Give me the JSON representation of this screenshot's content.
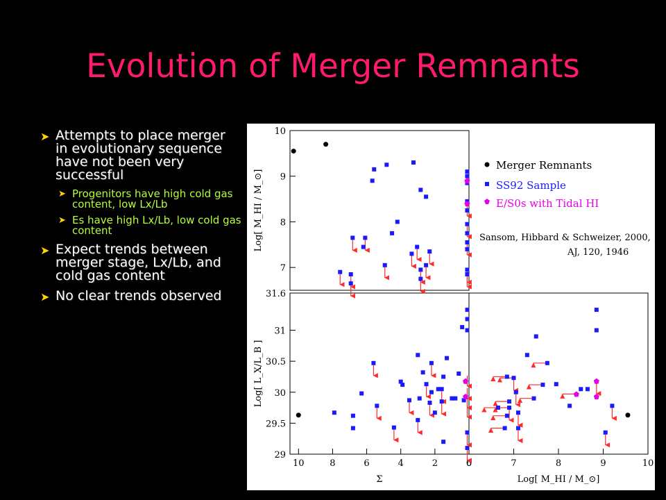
{
  "title": "Evolution of Merger Remnants",
  "bullets": [
    {
      "text": "Attempts to place merger in evolutionary sequence have not been very successful",
      "sub": [
        "Progenitors have high cold gas content, low Lx/Lb",
        "Es have high Lx/Lb, low cold gas content"
      ]
    },
    {
      "text": "Expect trends between merger stage, Lx/Lb, and cold gas content",
      "sub": []
    },
    {
      "text": "No clear trends observed",
      "sub": []
    }
  ],
  "colors": {
    "title": "#ff1a6e",
    "bullet_arrow": "#ffd400",
    "subbullet_text": "#b4ff3c",
    "merger": "#000000",
    "ss92": "#1a1aff",
    "es0": "#e600e6",
    "limit_arrow": "#ff2a2a"
  },
  "legend": {
    "merger": "Merger Remnants",
    "ss92": "SS92 Sample",
    "es0": "E/S0s with Tidal HI"
  },
  "reference": {
    "line1": "Sansom, Hibbard & Schweizer, 2000,",
    "line2": "AJ, 120, 1946"
  },
  "chart_data": [
    {
      "type": "scatter",
      "panel": "top-left",
      "xlabel": "",
      "ylabel": "Log[ M_HI / M_⊙]",
      "xlim": [
        10,
        0
      ],
      "ylim": [
        6.5,
        10
      ],
      "y_ticks": [
        "10",
        "9",
        "8",
        "7"
      ],
      "series": [
        {
          "name": "Merger Remnants",
          "points": [
            [
              9.8,
              9.55
            ],
            [
              8.0,
              9.7
            ]
          ]
        },
        {
          "name": "SS92 Sample",
          "points": [
            [
              4.6,
              9.25
            ],
            [
              5.3,
              9.15
            ],
            [
              5.4,
              8.9
            ],
            [
              3.1,
              9.3
            ],
            [
              2.7,
              8.7
            ],
            [
              2.4,
              8.55
            ],
            [
              4.0,
              8.0
            ],
            [
              4.3,
              7.75
            ],
            [
              6.5,
              7.65
            ],
            [
              5.8,
              7.65
            ],
            [
              5.9,
              7.45
            ],
            [
              2.9,
              7.45
            ],
            [
              3.2,
              7.3
            ],
            [
              2.2,
              7.35
            ],
            [
              2.4,
              7.05
            ],
            [
              4.7,
              7.05
            ],
            [
              2.7,
              6.95
            ],
            [
              2.7,
              6.75
            ],
            [
              7.2,
              6.9
            ],
            [
              6.6,
              6.85
            ],
            [
              6.6,
              6.65
            ],
            [
              0.1,
              9.1
            ],
            [
              0.1,
              9.0
            ],
            [
              0.1,
              8.85
            ],
            [
              0.1,
              8.45
            ],
            [
              0.1,
              8.25
            ],
            [
              0.1,
              7.95
            ],
            [
              0.1,
              7.75
            ],
            [
              0.1,
              7.55
            ],
            [
              0.1,
              7.4
            ],
            [
              0.1,
              6.95
            ],
            [
              0.1,
              6.85
            ]
          ]
        },
        {
          "name": "E/S0s with Tidal HI",
          "points": [
            [
              0.1,
              8.9
            ],
            [
              0.1,
              8.4
            ]
          ]
        }
      ],
      "upper_limits": [
        [
          6.5,
          7.65
        ],
        [
          5.8,
          7.65
        ],
        [
          2.9,
          7.45
        ],
        [
          3.2,
          7.3
        ],
        [
          2.2,
          7.35
        ],
        [
          2.4,
          7.05
        ],
        [
          4.7,
          7.05
        ],
        [
          2.7,
          6.95
        ],
        [
          2.7,
          6.75
        ],
        [
          7.2,
          6.9
        ],
        [
          6.6,
          6.85
        ],
        [
          6.6,
          6.65
        ],
        [
          0.1,
          7.95
        ],
        [
          0.1,
          7.55
        ],
        [
          0.1,
          6.95
        ],
        [
          0.1,
          6.85
        ],
        [
          0.1,
          8.4
        ]
      ]
    },
    {
      "type": "scatter",
      "panel": "bottom-left",
      "xlabel": "Σ",
      "ylabel": "Log[ L_X/L_B ]",
      "xlim": [
        10.5,
        0
      ],
      "ylim": [
        29,
        31.6
      ],
      "x_ticks": [
        "10",
        "8",
        "6",
        "4",
        "2",
        "0"
      ],
      "y_ticks": [
        "31.6",
        "31",
        "30.5",
        "30",
        "29.5",
        "29"
      ],
      "series": [
        {
          "name": "Merger Remnants",
          "points": [
            [
              10.0,
              29.63
            ]
          ]
        },
        {
          "name": "SS92 Sample",
          "points": [
            [
              0.1,
              31.33
            ],
            [
              0.1,
              31.18
            ],
            [
              0.4,
              31.05
            ],
            [
              0.1,
              31.0
            ],
            [
              3.0,
              30.6
            ],
            [
              1.3,
              30.55
            ],
            [
              5.6,
              30.47
            ],
            [
              2.2,
              30.47
            ],
            [
              2.7,
              30.32
            ],
            [
              0.6,
              30.3
            ],
            [
              1.5,
              30.25
            ],
            [
              4.0,
              30.17
            ],
            [
              3.9,
              30.12
            ],
            [
              2.5,
              30.13
            ],
            [
              1.8,
              30.05
            ],
            [
              2.2,
              30.0
            ],
            [
              1.6,
              30.05
            ],
            [
              6.3,
              29.98
            ],
            [
              2.9,
              29.9
            ],
            [
              3.5,
              29.87
            ],
            [
              1.0,
              29.9
            ],
            [
              0.8,
              29.9
            ],
            [
              0.3,
              29.87
            ],
            [
              2.3,
              29.83
            ],
            [
              1.6,
              29.85
            ],
            [
              5.4,
              29.78
            ],
            [
              7.9,
              29.67
            ],
            [
              2.0,
              29.67
            ],
            [
              6.8,
              29.62
            ],
            [
              3.0,
              29.55
            ],
            [
              6.8,
              29.42
            ],
            [
              4.4,
              29.43
            ],
            [
              0.1,
              29.35
            ],
            [
              1.5,
              29.2
            ],
            [
              0.1,
              29.1
            ]
          ]
        },
        {
          "name": "E/S0s with Tidal HI",
          "points": [
            [
              0.2,
              30.18
            ],
            [
              0.2,
              29.93
            ]
          ]
        }
      ],
      "upper_limits": [
        [
          5.6,
          30.47
        ],
        [
          2.2,
          30.47
        ],
        [
          2.5,
          30.13
        ],
        [
          1.6,
          30.05
        ],
        [
          3.5,
          29.87
        ],
        [
          2.3,
          29.83
        ],
        [
          1.6,
          29.85
        ],
        [
          5.4,
          29.78
        ],
        [
          3.0,
          29.55
        ],
        [
          4.4,
          29.43
        ],
        [
          0.1,
          30.3
        ],
        [
          0.1,
          30.1
        ],
        [
          0.1,
          29.95
        ],
        [
          0.1,
          29.8
        ],
        [
          0.1,
          29.35
        ],
        [
          0.1,
          29.1
        ]
      ]
    },
    {
      "type": "scatter",
      "panel": "bottom-right",
      "xlabel": "Log[ M_HI / M_⊙]",
      "ylabel": "",
      "xlim": [
        6,
        10
      ],
      "ylim": [
        29,
        31.6
      ],
      "x_ticks": [
        "6",
        "7",
        "8",
        "9",
        "10"
      ],
      "series": [
        {
          "name": "Merger Remnants",
          "points": [
            [
              9.55,
              29.63
            ]
          ]
        },
        {
          "name": "SS92 Sample",
          "points": [
            [
              8.85,
              31.33
            ],
            [
              8.85,
              31.0
            ],
            [
              7.5,
              30.9
            ],
            [
              7.3,
              30.6
            ],
            [
              7.75,
              30.47
            ],
            [
              6.85,
              30.25
            ],
            [
              7.0,
              30.23
            ],
            [
              7.95,
              30.13
            ],
            [
              7.65,
              30.12
            ],
            [
              7.05,
              30.0
            ],
            [
              8.65,
              30.05
            ],
            [
              8.5,
              30.05
            ],
            [
              7.45,
              29.9
            ],
            [
              6.9,
              29.85
            ],
            [
              6.9,
              29.75
            ],
            [
              8.25,
              29.78
            ],
            [
              6.65,
              29.75
            ],
            [
              9.2,
              29.78
            ],
            [
              7.1,
              29.67
            ],
            [
              6.85,
              29.62
            ],
            [
              6.8,
              29.42
            ],
            [
              7.1,
              29.42
            ],
            [
              9.05,
              29.35
            ]
          ]
        },
        {
          "name": "E/S0s with Tidal HI",
          "points": [
            [
              8.85,
              30.18
            ],
            [
              8.4,
              29.97
            ],
            [
              8.85,
              29.93
            ]
          ]
        }
      ],
      "left_limits": [
        [
          7.75,
          30.47
        ],
        [
          6.85,
          30.25
        ],
        [
          7.0,
          30.23
        ],
        [
          7.65,
          30.12
        ],
        [
          7.45,
          29.9
        ],
        [
          6.9,
          29.85
        ],
        [
          6.9,
          29.75
        ],
        [
          6.65,
          29.75
        ],
        [
          6.85,
          29.62
        ],
        [
          6.8,
          29.42
        ],
        [
          8.4,
          29.97
        ]
      ],
      "upper_limits": [
        [
          7.0,
          30.23
        ],
        [
          7.05,
          30.0
        ],
        [
          6.9,
          29.75
        ],
        [
          7.1,
          29.67
        ],
        [
          7.1,
          29.42
        ],
        [
          9.2,
          29.78
        ],
        [
          9.05,
          29.35
        ],
        [
          8.85,
          30.18
        ]
      ]
    }
  ]
}
